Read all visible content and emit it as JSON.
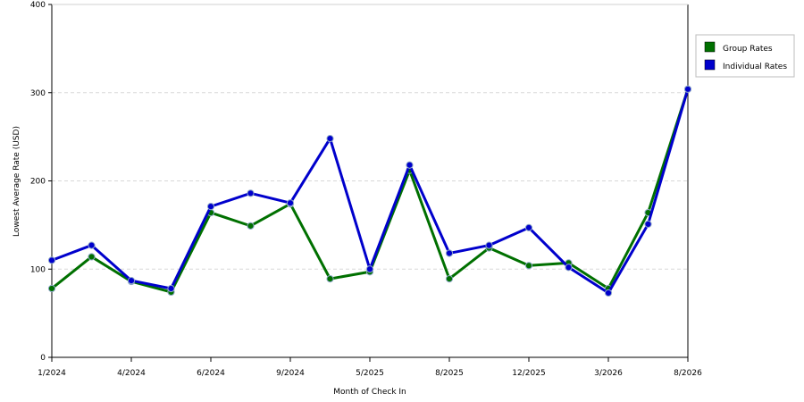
{
  "chart_data": {
    "type": "line",
    "title": "",
    "xlabel": "Month of Check In",
    "ylabel": "Lowest Average Rate (USD)",
    "ylim": [
      0,
      400
    ],
    "yticks": [
      0,
      100,
      200,
      300,
      400
    ],
    "grid": true,
    "legend_position": "top-right",
    "x_tick_labels": [
      "1/2024",
      "4/2024",
      "6/2024",
      "9/2024",
      "5/2025",
      "8/2025",
      "12/2025",
      "3/2026",
      "8/2026"
    ],
    "x_tick_positions": [
      0,
      2,
      4,
      6,
      8,
      10,
      12,
      14,
      16
    ],
    "x": [
      0,
      1,
      2,
      3,
      4,
      5,
      6,
      7,
      8,
      9,
      10,
      11,
      12,
      13,
      14,
      15,
      16
    ],
    "series": [
      {
        "name": "Group Rates",
        "color": "#007000",
        "values": [
          78,
          114,
          86,
          74,
          164,
          149,
          174,
          89,
          97,
          212,
          89,
          124,
          104,
          107,
          78,
          164,
          304
        ]
      },
      {
        "name": "Individual Rates",
        "color": "#0000cc",
        "values": [
          110,
          127,
          87,
          78,
          171,
          186,
          175,
          248,
          100,
          218,
          118,
          127,
          147,
          102,
          73,
          151,
          304
        ]
      }
    ]
  }
}
